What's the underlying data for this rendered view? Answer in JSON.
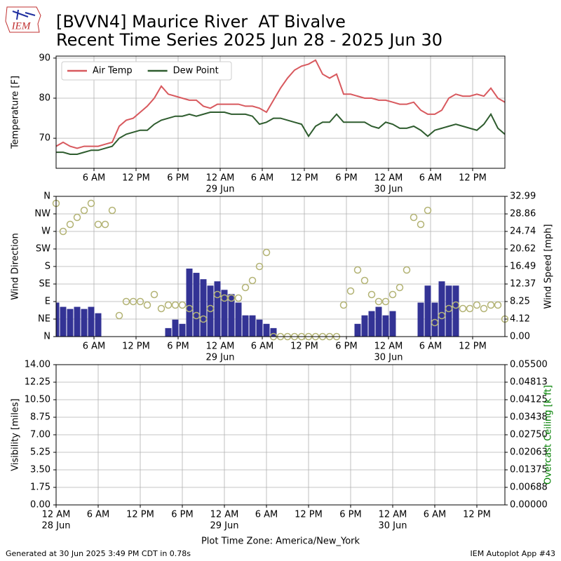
{
  "header": {
    "logo": "IEM",
    "title": [
      "[BVVN4] Maurice River  AT Bivalve",
      "Recent Time Series 2025 Jun 28 - 2025 Jun 30"
    ]
  },
  "chart_data": [
    {
      "type": "line",
      "ylabel": "Temperature [F]",
      "legend": "upper left",
      "grid": true,
      "xlim": [
        0.6,
        64.6
      ],
      "ylim": [
        62.5,
        90.5
      ],
      "yticks": [
        70,
        80,
        90
      ],
      "xticks": [
        {
          "value": 6,
          "label": "6 AM"
        },
        {
          "value": 12,
          "label": "12 PM"
        },
        {
          "value": 18,
          "label": "6 PM"
        },
        {
          "value": 24,
          "label": "12 AM",
          "date": "29 Jun"
        },
        {
          "value": 30,
          "label": "6 AM"
        },
        {
          "value": 36,
          "label": "12 PM"
        },
        {
          "value": 42,
          "label": "6 PM"
        },
        {
          "value": 48,
          "label": "12 AM",
          "date": "30 Jun"
        },
        {
          "value": 54,
          "label": "6 AM"
        },
        {
          "value": 60,
          "label": "12 PM"
        }
      ],
      "x": [
        0.6,
        1.6,
        2.6,
        3.6,
        4.6,
        5.6,
        6.6,
        7.6,
        8.6,
        9.6,
        10.6,
        11.6,
        12.6,
        13.6,
        14.6,
        15.6,
        16.6,
        17.6,
        18.6,
        19.6,
        20.6,
        21.6,
        22.6,
        23.6,
        24.6,
        25.6,
        26.6,
        27.6,
        28.6,
        29.6,
        30.6,
        31.6,
        32.6,
        33.6,
        34.6,
        35.6,
        36.6,
        37.6,
        38.6,
        39.6,
        40.6,
        41.6,
        42.6,
        43.6,
        44.6,
        45.6,
        46.6,
        47.6,
        48.6,
        49.6,
        50.6,
        51.6,
        52.6,
        53.6,
        54.6,
        55.6,
        56.6,
        57.6,
        58.6,
        59.6,
        60.6,
        61.6,
        62.6,
        63.6,
        64.6
      ],
      "series": [
        {
          "name": "Air Temp",
          "color": "#d8595e",
          "values": [
            68,
            69,
            68,
            67.5,
            68,
            68,
            68,
            68.5,
            69,
            73,
            74.5,
            75,
            76.5,
            78,
            80,
            83,
            81,
            80.5,
            80,
            79.5,
            79.5,
            78,
            77.5,
            78.5,
            78.5,
            78.5,
            78.5,
            78,
            78,
            77.5,
            76.5,
            79.5,
            82.5,
            85,
            87,
            88,
            88.5,
            89.5,
            86,
            85,
            86,
            81,
            81,
            80.5,
            80,
            80,
            79.5,
            79.5,
            79,
            78.5,
            78.5,
            79,
            77,
            76,
            76,
            77,
            80,
            81,
            80.5,
            80.5,
            81,
            80.5,
            82.5,
            80,
            79
          ]
        },
        {
          "name": "Dew Point",
          "color": "#2e5c2e",
          "values": [
            66.5,
            66.5,
            66,
            66,
            66.5,
            67,
            67,
            67.5,
            68,
            70,
            71,
            71.5,
            72,
            72,
            73.5,
            74.5,
            75,
            75.5,
            75.5,
            76,
            75.5,
            76,
            76.5,
            76.5,
            76.5,
            76,
            76,
            76,
            75.5,
            73.5,
            74,
            75,
            75,
            74.5,
            74,
            73.5,
            70.5,
            73,
            74,
            74,
            76,
            74,
            74,
            74,
            74,
            73,
            72.5,
            74,
            73.5,
            72.5,
            72.5,
            73,
            72,
            70.5,
            72,
            72.5,
            73,
            73.5,
            73,
            72.5,
            72,
            73.5,
            76,
            72.5,
            71
          ]
        }
      ]
    },
    {
      "type": "combo",
      "ylabel": "Wind Direction",
      "y2label": "Wind Speed [mph]",
      "grid": true,
      "xlim": [
        0.6,
        64.6
      ],
      "ylim": [
        0,
        360
      ],
      "y2lim": [
        0,
        32.99
      ],
      "yticks": [
        {
          "value": 0,
          "label": "N"
        },
        {
          "value": 45,
          "label": "NE"
        },
        {
          "value": 90,
          "label": "E"
        },
        {
          "value": 135,
          "label": "SE"
        },
        {
          "value": 180,
          "label": "S"
        },
        {
          "value": 225,
          "label": "SW"
        },
        {
          "value": 270,
          "label": "W"
        },
        {
          "value": 315,
          "label": "NW"
        },
        {
          "value": 360,
          "label": "N"
        }
      ],
      "y2ticks": [
        {
          "value": 0,
          "label": "0.00"
        },
        4.12,
        8.25,
        12.37,
        16.49,
        20.62,
        24.74,
        28.86,
        32.99
      ],
      "xticks": [
        {
          "value": 6,
          "label": "6 AM"
        },
        {
          "value": 12,
          "label": "12 PM"
        },
        {
          "value": 18,
          "label": "6 PM"
        },
        {
          "value": 24,
          "label": "12 AM",
          "date": "29 Jun"
        },
        {
          "value": 30,
          "label": "6 AM"
        },
        {
          "value": 36,
          "label": "12 PM"
        },
        {
          "value": 42,
          "label": "6 PM"
        },
        {
          "value": 48,
          "label": "12 AM",
          "date": "30 Jun"
        },
        {
          "value": 54,
          "label": "6 AM"
        },
        {
          "value": 60,
          "label": "12 PM"
        }
      ],
      "x": [
        0.6,
        1.6,
        2.6,
        3.6,
        4.6,
        5.6,
        6.6,
        7.6,
        8.6,
        9.6,
        10.6,
        11.6,
        12.6,
        13.6,
        14.6,
        15.6,
        16.6,
        17.6,
        18.6,
        19.6,
        20.6,
        21.6,
        22.6,
        23.6,
        24.6,
        25.6,
        26.6,
        27.6,
        28.6,
        29.6,
        30.6,
        31.6,
        32.6,
        33.6,
        34.6,
        35.6,
        36.6,
        37.6,
        38.6,
        39.6,
        40.6,
        41.6,
        42.6,
        43.6,
        44.6,
        45.6,
        46.6,
        47.6,
        48.6,
        49.6,
        50.6,
        51.6,
        52.6,
        53.6,
        54.6,
        55.6,
        56.6,
        57.6,
        58.6,
        59.6,
        60.6,
        61.6,
        62.6,
        63.6,
        64.6
      ],
      "series": [
        {
          "kind": "bar",
          "axis": "y2",
          "color": "#333395",
          "values": [
            8,
            7,
            6.5,
            7,
            6.5,
            7,
            5.5,
            0,
            0,
            0,
            0,
            0,
            0,
            0,
            0,
            0,
            2,
            4,
            3,
            16,
            15,
            13.5,
            12,
            13,
            11,
            10,
            8,
            5,
            5,
            4,
            3,
            2,
            0,
            0,
            0,
            0,
            0,
            0,
            0,
            0,
            0,
            0,
            0,
            3,
            5,
            6,
            7,
            5,
            6,
            0,
            0,
            0,
            8,
            12,
            8,
            13,
            12,
            12,
            0,
            0,
            0,
            0,
            0,
            0,
            0
          ]
        },
        {
          "kind": "scatter",
          "color": "#b3b374",
          "values": [
            342,
            270,
            288,
            306,
            324,
            342,
            288,
            288,
            324,
            54,
            90,
            90,
            90,
            81,
            108,
            72,
            81,
            81,
            81,
            72,
            54,
            45,
            72,
            108,
            99,
            99,
            99,
            126,
            144,
            180,
            216,
            0,
            0,
            0,
            0,
            0,
            0,
            0,
            0,
            0,
            0,
            81,
            117,
            171,
            144,
            108,
            90,
            90,
            108,
            126,
            171,
            306,
            288,
            324,
            36,
            54,
            72,
            81,
            72,
            72,
            81,
            72,
            81,
            81,
            45
          ]
        }
      ]
    },
    {
      "type": "line",
      "ylabel": "Visibility [miles]",
      "y2label": "Overcast Ceiling [k ft]",
      "y2label_color": "#008000",
      "xlabel": "Plot Time Zone: America/New_York",
      "grid": true,
      "xlim": [
        0,
        64
      ],
      "ylim": [
        0,
        14
      ],
      "y2lim": [
        0,
        0.055
      ],
      "yticks": [
        {
          "value": 0,
          "label": "0.00"
        },
        1.75,
        {
          "value": 3.5,
          "label": "3.50"
        },
        5.25,
        {
          "value": 7,
          "label": "7.00"
        },
        8.75,
        {
          "value": 10.5,
          "label": "10.50"
        },
        12.25,
        {
          "value": 14,
          "label": "14.00"
        }
      ],
      "y2ticks": [
        {
          "value": 0,
          "label": "0.00000"
        },
        0.00688,
        0.01375,
        0.02063,
        {
          "value": 0.0275,
          "label": "0.02750"
        },
        0.03438,
        0.04125,
        0.04813,
        {
          "value": 0.055,
          "label": "0.05500"
        }
      ],
      "xticks": [
        {
          "value": 0,
          "label": "12 AM",
          "date": "28 Jun"
        },
        {
          "value": 6,
          "label": "6 AM"
        },
        {
          "value": 12,
          "label": "12 PM"
        },
        {
          "value": 18,
          "label": "6 PM"
        },
        {
          "value": 24,
          "label": "12 AM",
          "date": "29 Jun"
        },
        {
          "value": 30,
          "label": "6 AM"
        },
        {
          "value": 36,
          "label": "12 PM"
        },
        {
          "value": 42,
          "label": "6 PM"
        },
        {
          "value": 48,
          "label": "12 AM",
          "date": "30 Jun"
        },
        {
          "value": 54,
          "label": "6 AM"
        },
        {
          "value": 60,
          "label": "12 PM"
        }
      ],
      "series": []
    }
  ],
  "footer": {
    "left": "Generated at 30 Jun 2025 3:49 PM CDT in 0.78s",
    "right": "IEM Autoplot App #43"
  }
}
